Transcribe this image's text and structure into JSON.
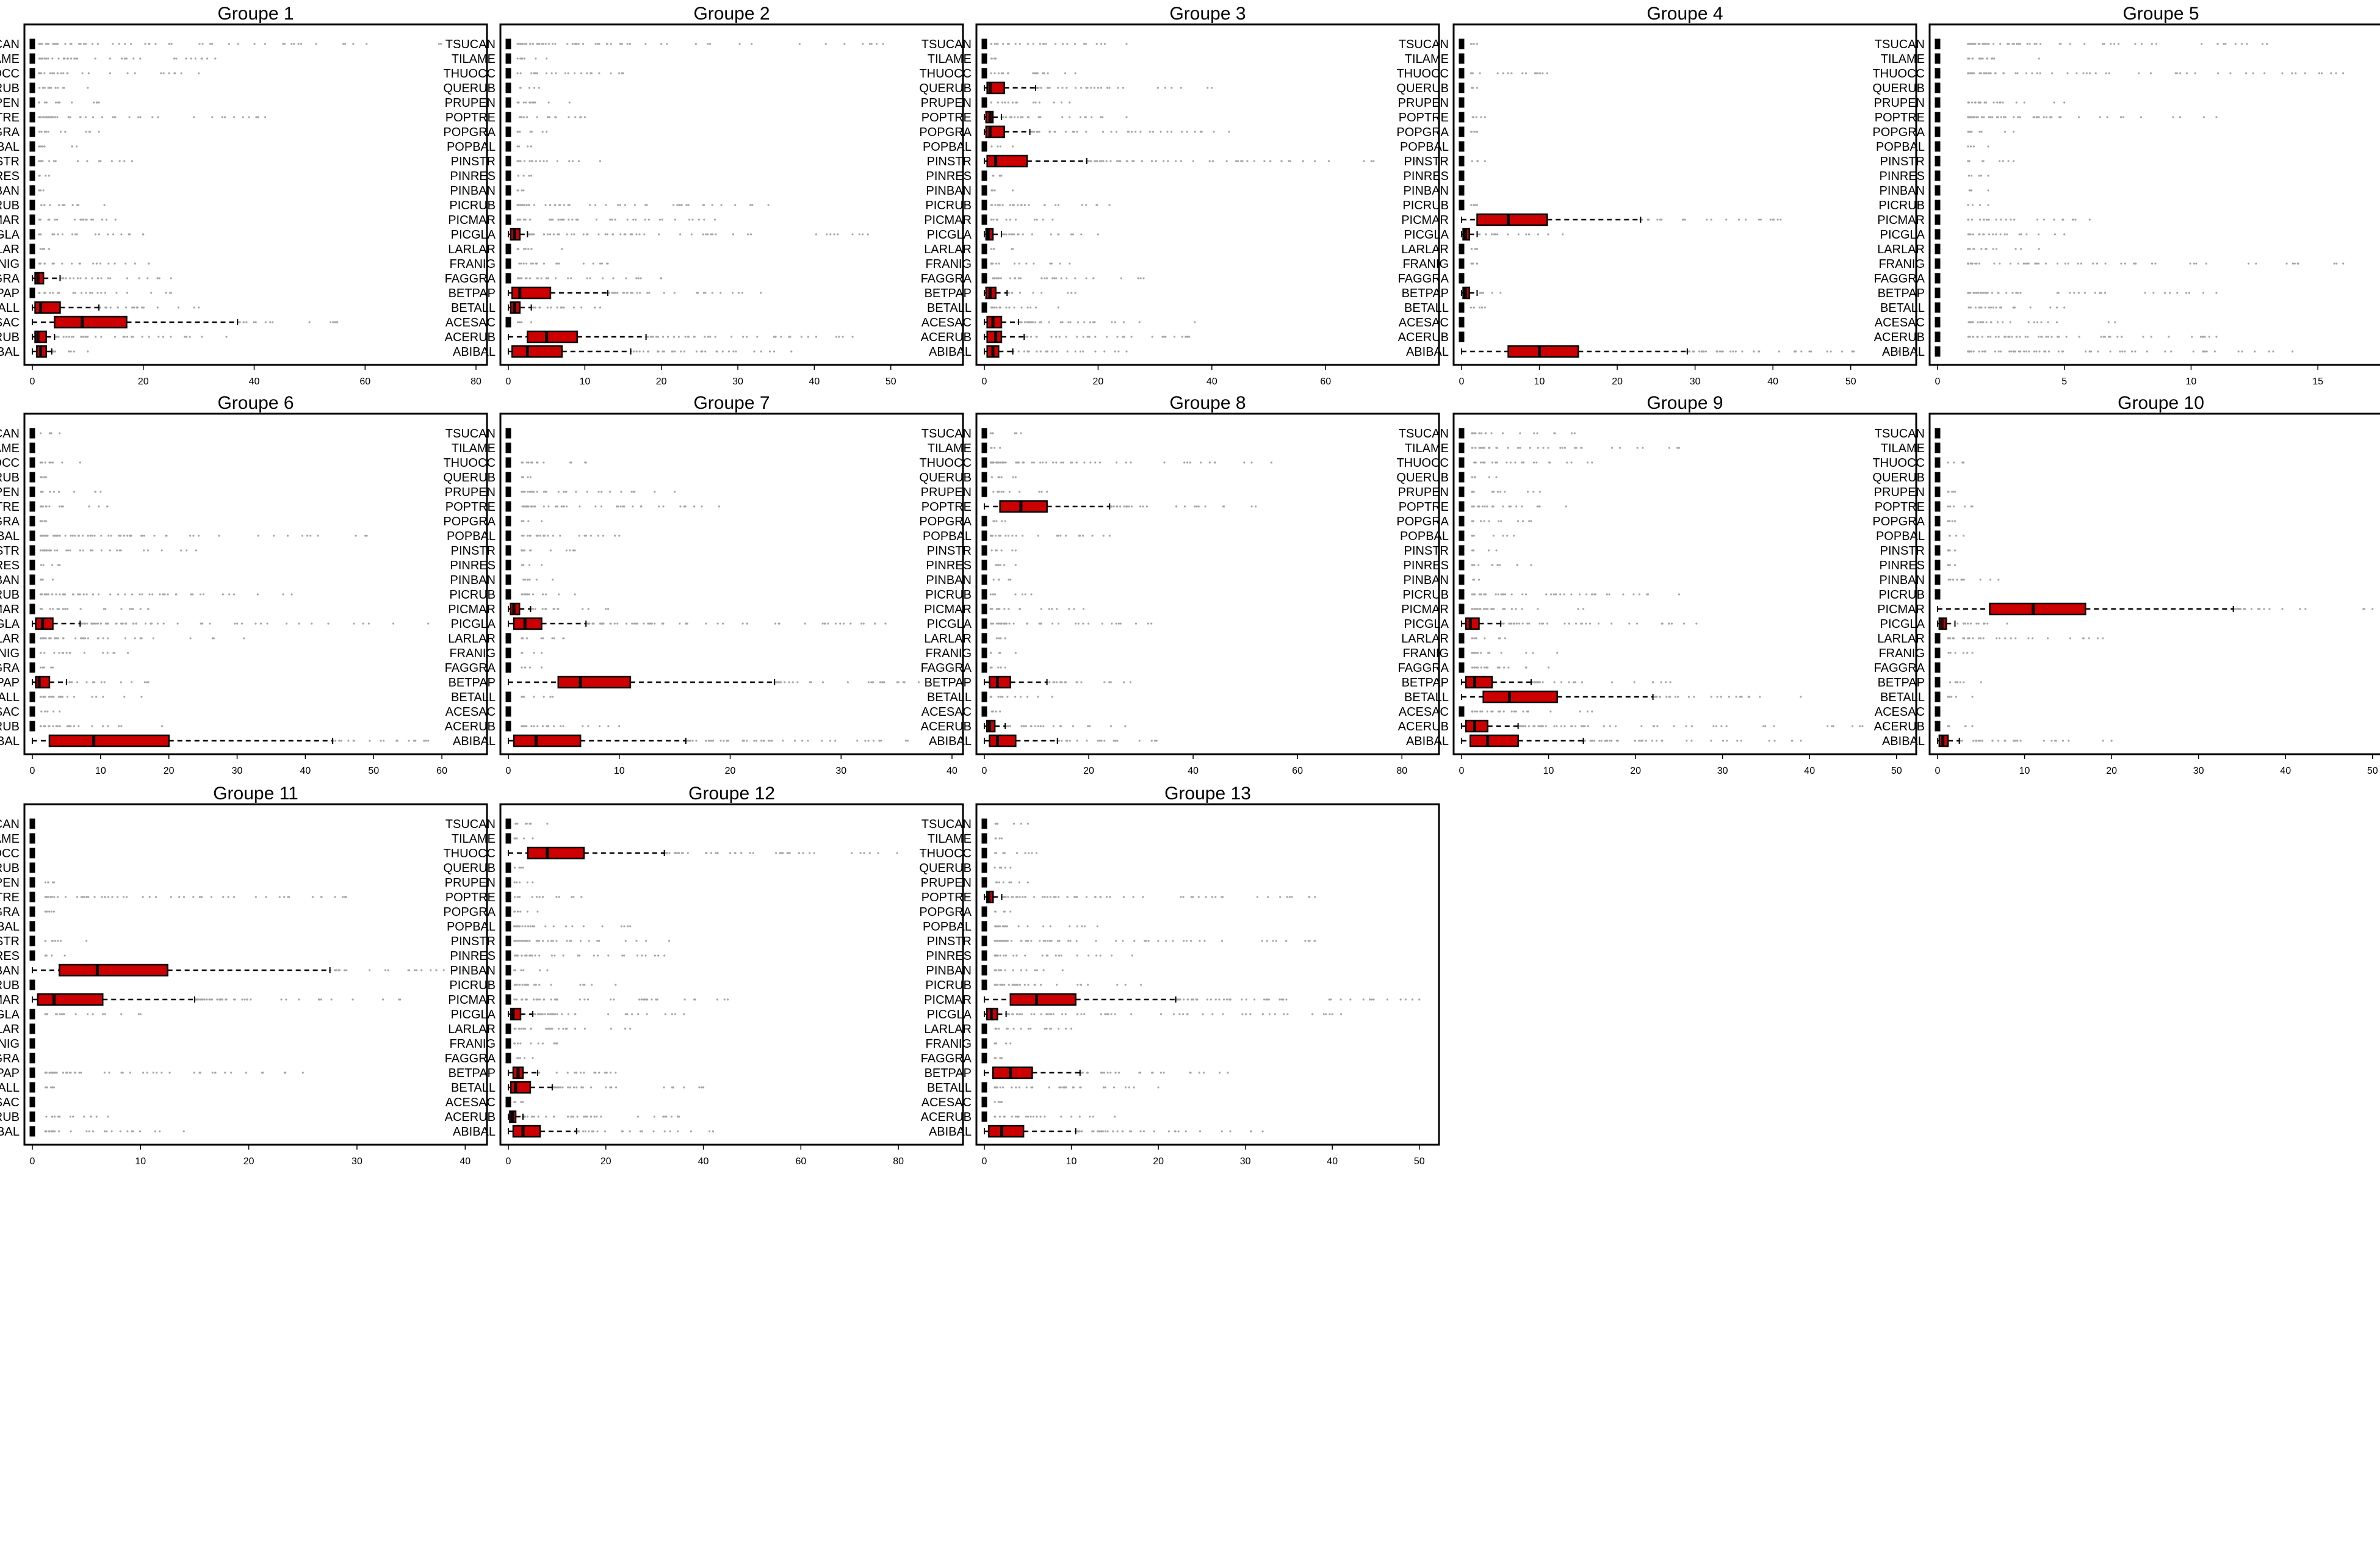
{
  "figure": {
    "species": [
      "ABIBAL",
      "ACERUB",
      "ACESAC",
      "BETALL",
      "BETPAP",
      "FAGGRA",
      "FRANIG",
      "LARLAR",
      "PICGLA",
      "PICMAR",
      "PICRUB",
      "PINBAN",
      "PINRES",
      "PINSTR",
      "POPBAL",
      "POPGRA",
      "POPTRE",
      "PRUPEN",
      "QUERUB",
      "THUOCC",
      "TILAME",
      "TSUCAN"
    ],
    "colors": {
      "box_fill": "#cc0000",
      "small_box_fill": "#000000",
      "outliers": "#a6a6a6",
      "frame": "#000000"
    }
  },
  "chart_data": [
    {
      "type": "boxplot",
      "title": "Groupe 1",
      "xlim": [
        0,
        80
      ],
      "ticks": [
        0,
        20,
        40,
        60,
        80
      ],
      "boxes": {
        "ABIBAL": [
          0,
          0.8,
          1.5,
          2.5,
          3.5
        ],
        "ACERUB": [
          0,
          0.5,
          1,
          2.5,
          4
        ],
        "ACESAC": [
          0,
          4,
          9,
          17,
          37
        ],
        "BETALL": [
          0,
          0.5,
          1.5,
          5,
          12
        ],
        "FAGGRA": [
          0,
          0.5,
          1,
          2,
          5
        ]
      },
      "max_outliers": {
        "TSUCAN": 77,
        "TILAME": 33,
        "THUOCC": 30,
        "QUERUB": 10,
        "PRUPEN": 12,
        "POPTRE": 42,
        "POPGRA": 12,
        "POPBAL": 8,
        "PINSTR": 18,
        "PINRES": 3,
        "PINBAN": 2,
        "PICRUB": 13,
        "PICMAR": 15,
        "PICGLA": 20,
        "LARLAR": 3,
        "FRANIG": 21,
        "FAGGRA": 25,
        "BETPAP": 25,
        "BETALL": 30,
        "ACESAC": 55,
        "ACERUB": 35,
        "ABIBAL": 10
      }
    },
    {
      "type": "boxplot",
      "title": "Groupe 2",
      "xlim": [
        0,
        58
      ],
      "ticks": [
        0,
        10,
        20,
        30,
        40,
        50
      ],
      "boxes": {
        "ABIBAL": [
          0,
          0.5,
          2.5,
          7,
          16
        ],
        "ACERUB": [
          0,
          2.5,
          5,
          9,
          18
        ],
        "BETALL": [
          0,
          0.3,
          0.8,
          1.5,
          3
        ],
        "BETPAP": [
          0,
          0.5,
          1.5,
          5.5,
          13
        ],
        "PICGLA": [
          0,
          0.3,
          0.8,
          1.5,
          2.5
        ]
      },
      "max_outliers": {
        "TSUCAN": 49,
        "TILAME": 5,
        "THUOCC": 15,
        "QUERUB": 4,
        "PRUPEN": 8,
        "POPTRE": 10,
        "POPGRA": 5,
        "POPBAL": 3,
        "PINSTR": 12,
        "PINRES": 3,
        "PINBAN": 2,
        "PICRUB": 34,
        "PICMAR": 27,
        "PICGLA": 47,
        "LARLAR": 7,
        "FRANIG": 13,
        "FAGGRA": 20,
        "BETPAP": 33,
        "BETALL": 12,
        "ACESAC": 3,
        "ACERUB": 45,
        "ABIBAL": 37
      }
    },
    {
      "type": "boxplot",
      "title": "Groupe 3",
      "xlim": [
        0,
        78
      ],
      "ticks": [
        0,
        20,
        40,
        60
      ],
      "boxes": {
        "ABIBAL": [
          0,
          0.5,
          1.5,
          2.5,
          5
        ],
        "ACERUB": [
          0,
          0.5,
          2,
          3,
          7
        ],
        "ACESAC": [
          0,
          0.5,
          1.5,
          3,
          6
        ],
        "BETPAP": [
          0,
          0.3,
          1,
          2,
          4
        ],
        "PICGLA": [
          0,
          0.3,
          0.7,
          1.5,
          3
        ],
        "PINSTR": [
          0,
          0.5,
          2,
          7.5,
          18
        ],
        "POPGRA": [
          0,
          0.3,
          1,
          3.5,
          8
        ],
        "POPTRE": [
          0,
          0.3,
          1,
          1.5,
          3
        ],
        "QUERUB": [
          0,
          0.5,
          1,
          3.5,
          9
        ]
      },
      "max_outliers": {
        "TSUCAN": 25,
        "TILAME": 2,
        "THUOCC": 16,
        "QUERUB": 40,
        "PRUPEN": 15,
        "POPTRE": 25,
        "POPGRA": 43,
        "POPBAL": 5,
        "PINSTR": 76,
        "PINRES": 3,
        "PINBAN": 5,
        "PICRUB": 22,
        "PICMAR": 12,
        "PICGLA": 20,
        "LARLAR": 5,
        "FRANIG": 15,
        "FAGGRA": 28,
        "BETPAP": 16,
        "BETALL": 13,
        "ACESAC": 37,
        "ACERUB": 36,
        "ABIBAL": 25
      }
    },
    {
      "type": "boxplot",
      "title": "Groupe 4",
      "xlim": [
        0,
        57
      ],
      "ticks": [
        0,
        10,
        20,
        30,
        40,
        50
      ],
      "boxes": {
        "ABIBAL": [
          0,
          6,
          10,
          15,
          29
        ],
        "BETPAP": [
          0,
          0.2,
          0.5,
          1,
          2
        ],
        "PICGLA": [
          0,
          0.2,
          0.5,
          1,
          2
        ],
        "PICMAR": [
          0,
          2,
          6,
          11,
          23
        ]
      },
      "max_outliers": {
        "TSUCAN": 2,
        "TILAME": 1,
        "THUOCC": 11,
        "QUERUB": 2,
        "PRUPEN": 1,
        "POPTRE": 3,
        "POPGRA": 2,
        "POPBAL": 1,
        "PINSTR": 3,
        "PINRES": 1,
        "PINBAN": 1,
        "PICRUB": 2,
        "PICMAR": 41,
        "PICGLA": 13,
        "LARLAR": 2,
        "FRANIG": 2,
        "FAGGRA": 1,
        "BETPAP": 5,
        "BETALL": 3,
        "ACESAC": 1,
        "ACERUB": 1,
        "ABIBAL": 57
      }
    },
    {
      "type": "boxplot",
      "title": "Groupe 5",
      "xlim": [
        0,
        17.5
      ],
      "ticks": [
        0,
        5,
        10,
        15
      ],
      "boxes": {},
      "max_outliers": {
        "TSUCAN": 13,
        "TILAME": 4,
        "THUOCC": 16,
        "QUERUB": 1,
        "PRUPEN": 5,
        "POPTRE": 11,
        "POPGRA": 3,
        "POPBAL": 2,
        "PINSTR": 3,
        "PINRES": 2,
        "PINBAN": 2,
        "PICRUB": 2,
        "PICMAR": 6,
        "PICGLA": 5,
        "LARLAR": 4,
        "FRANIG": 16,
        "FAGGRA": 1,
        "BETPAP": 11,
        "BETALL": 5,
        "ACESAC": 7,
        "ACERUB": 11,
        "ABIBAL": 14
      }
    },
    {
      "type": "boxplot",
      "title": "Groupe 6",
      "xlim": [
        0,
        65
      ],
      "ticks": [
        0,
        10,
        20,
        30,
        40,
        50,
        60
      ],
      "boxes": {
        "ABIBAL": [
          0,
          2.5,
          9,
          20,
          44
        ],
        "BETPAP": [
          0,
          0.5,
          1,
          2.5,
          5
        ],
        "PICGLA": [
          0,
          0.5,
          1.5,
          3,
          7
        ]
      },
      "max_outliers": {
        "TSUCAN": 4,
        "TILAME": 1,
        "THUOCC": 7,
        "QUERUB": 2,
        "PRUPEN": 10,
        "POPTRE": 11,
        "POPGRA": 2,
        "POPBAL": 49,
        "PINSTR": 24,
        "PINRES": 4,
        "PINBAN": 3,
        "PICRUB": 38,
        "PICMAR": 17,
        "PICGLA": 58,
        "LARLAR": 31,
        "FRANIG": 14,
        "FAGGRA": 3,
        "BETPAP": 17,
        "BETALL": 16,
        "ACESAC": 4,
        "ACERUB": 19,
        "ABIBAL": 58
      }
    },
    {
      "type": "boxplot",
      "title": "Groupe 7",
      "xlim": [
        0,
        40
      ],
      "ticks": [
        0,
        10,
        20,
        30,
        40
      ],
      "boxes": {
        "ABIBAL": [
          0,
          0.5,
          2.5,
          6.5,
          16
        ],
        "BETPAP": [
          0,
          4.5,
          6.5,
          11,
          24
        ],
        "PICGLA": [
          0,
          0.5,
          1.5,
          3,
          7
        ],
        "PICMAR": [
          0,
          0.2,
          0.5,
          1,
          2
        ]
      },
      "max_outliers": {
        "TSUCAN": 1,
        "TILAME": 1,
        "THUOCC": 7,
        "QUERUB": 2,
        "PRUPEN": 15,
        "POPTRE": 19,
        "POPGRA": 3,
        "POPBAL": 10,
        "PINSTR": 6,
        "PINRES": 3,
        "PINBAN": 4,
        "PICRUB": 6,
        "PICMAR": 9,
        "PICGLA": 34,
        "LARLAR": 5,
        "FRANIG": 3,
        "FAGGRA": 3,
        "BETPAP": 37,
        "BETALL": 4,
        "ACESAC": 1,
        "ACERUB": 10,
        "ABIBAL": 36
      }
    },
    {
      "type": "boxplot",
      "title": "Groupe 8",
      "xlim": [
        0,
        85
      ],
      "ticks": [
        0,
        20,
        40,
        60,
        80
      ],
      "boxes": {
        "ABIBAL": [
          0,
          1,
          2.5,
          6,
          14
        ],
        "ACERUB": [
          0,
          0.5,
          1,
          2,
          4
        ],
        "BETPAP": [
          0,
          1,
          2.5,
          5,
          12
        ],
        "POPTRE": [
          0,
          3,
          7,
          12,
          24
        ]
      },
      "max_outliers": {
        "TSUCAN": 7,
        "TILAME": 3,
        "THUOCC": 55,
        "QUERUB": 6,
        "PRUPEN": 12,
        "POPTRE": 52,
        "POPGRA": 4,
        "POPBAL": 24,
        "PINSTR": 6,
        "PINRES": 6,
        "PINBAN": 5,
        "PICRUB": 9,
        "PICMAR": 19,
        "PICGLA": 32,
        "LARLAR": 4,
        "FRANIG": 6,
        "FAGGRA": 4,
        "BETPAP": 28,
        "BETALL": 13,
        "ACESAC": 3,
        "ACERUB": 27,
        "ABIBAL": 33
      }
    },
    {
      "type": "boxplot",
      "title": "Groupe 9",
      "xlim": [
        0,
        51
      ],
      "ticks": [
        0,
        10,
        20,
        30,
        40,
        50
      ],
      "boxes": {
        "ABIBAL": [
          0,
          1,
          3,
          6.5,
          14
        ],
        "ACERUB": [
          0,
          0.5,
          1.5,
          3,
          6.5
        ],
        "BETALL": [
          0,
          2.5,
          5.5,
          11,
          22
        ],
        "BETPAP": [
          0,
          0.5,
          1.5,
          3.5,
          8
        ],
        "PICGLA": [
          0,
          0.5,
          1,
          2,
          4.5
        ]
      },
      "max_outliers": {
        "TSUCAN": 13,
        "TILAME": 25,
        "THUOCC": 15,
        "QUERUB": 4,
        "PRUPEN": 9,
        "POPTRE": 12,
        "POPGRA": 8,
        "POPBAL": 6,
        "PINSTR": 4,
        "PINRES": 8,
        "PINBAN": 2,
        "PICRUB": 25,
        "PICMAR": 14,
        "PICGLA": 27,
        "LARLAR": 5,
        "FRANIG": 11,
        "FAGGRA": 10,
        "BETPAP": 24,
        "BETALL": 39,
        "ACESAC": 15,
        "ACERUB": 50,
        "ABIBAL": 39
      }
    },
    {
      "type": "boxplot",
      "title": "Groupe 10",
      "xlim": [
        0,
        51
      ],
      "ticks": [
        0,
        10,
        20,
        30,
        40,
        50
      ],
      "boxes": {
        "ABIBAL": [
          0,
          0.2,
          0.6,
          1.2,
          2.5
        ],
        "PICGLA": [
          0,
          0.2,
          0.5,
          1,
          2
        ],
        "PICMAR": [
          0,
          6,
          11,
          17,
          34
        ]
      },
      "max_outliers": {
        "TSUCAN": 1,
        "TILAME": 1,
        "THUOCC": 3,
        "QUERUB": 1,
        "PRUPEN": 2,
        "POPTRE": 4,
        "POPGRA": 2,
        "POPBAL": 3,
        "PINSTR": 2,
        "PINRES": 2,
        "PINBAN": 7,
        "PICRUB": 1,
        "PICMAR": 50,
        "PICGLA": 8,
        "LARLAR": 19,
        "FRANIG": 4,
        "FAGGRA": 1,
        "BETPAP": 5,
        "BETALL": 4,
        "ACESAC": 1,
        "ACERUB": 4,
        "ABIBAL": 20
      }
    },
    {
      "type": "boxplot",
      "title": "Groupe 11",
      "xlim": [
        0,
        41
      ],
      "ticks": [
        0,
        10,
        20,
        30,
        40
      ],
      "boxes": {
        "PICMAR": [
          0,
          0.5,
          2,
          6.5,
          15
        ],
        "PINBAN": [
          0,
          2.5,
          6,
          12.5,
          27.5
        ]
      },
      "max_outliers": {
        "TSUCAN": 1,
        "TILAME": 1,
        "THUOCC": 1,
        "QUERUB": 1,
        "PRUPEN": 2,
        "POPTRE": 29,
        "POPGRA": 2,
        "POPBAL": 1,
        "PINSTR": 5,
        "PINRES": 3,
        "PINBAN": 40,
        "PICRUB": 1,
        "PICMAR": 34,
        "PICGLA": 10,
        "LARLAR": 1,
        "FRANIG": 1,
        "FAGGRA": 1,
        "BETPAP": 25,
        "BETALL": 2,
        "ACESAC": 1,
        "ACERUB": 7,
        "ABIBAL": 14
      }
    },
    {
      "type": "boxplot",
      "title": "Groupe 12",
      "xlim": [
        0,
        91
      ],
      "ticks": [
        0,
        20,
        40,
        60,
        80
      ],
      "boxes": {
        "ABIBAL": [
          0,
          1,
          3,
          6.5,
          14
        ],
        "ACERUB": [
          0,
          0.3,
          0.8,
          1.5,
          3
        ],
        "BETALL": [
          0,
          0.5,
          1.5,
          4.5,
          9
        ],
        "BETPAP": [
          0,
          1,
          2,
          3,
          6
        ],
        "PICGLA": [
          0,
          0.5,
          1,
          2.5,
          5
        ],
        "THUOCC": [
          0,
          4,
          8,
          15.5,
          32
        ]
      },
      "max_outliers": {
        "TSUCAN": 8,
        "TILAME": 5,
        "THUOCC": 88,
        "QUERUB": 3,
        "PRUPEN": 5,
        "POPTRE": 15,
        "POPGRA": 6,
        "POPBAL": 25,
        "PINSTR": 33,
        "PINRES": 32,
        "PINBAN": 8,
        "PICRUB": 22,
        "PICMAR": 45,
        "PICGLA": 36,
        "LARLAR": 25,
        "FRANIG": 10,
        "FAGGRA": 5,
        "BETPAP": 22,
        "BETALL": 40,
        "ACESAC": 3,
        "ACERUB": 35,
        "ABIBAL": 42
      }
    },
    {
      "type": "boxplot",
      "title": "Groupe 13",
      "xlim": [
        0,
        51
      ],
      "ticks": [
        0,
        10,
        20,
        30,
        40,
        50
      ],
      "boxes": {
        "ABIBAL": [
          0,
          0.5,
          2,
          4.5,
          10.5
        ],
        "BETPAP": [
          0,
          1,
          3,
          5.5,
          11
        ],
        "PICGLA": [
          0,
          0.3,
          0.8,
          1.5,
          2.5
        ],
        "PICMAR": [
          0,
          3,
          6,
          10.5,
          22
        ],
        "POPTRE": [
          0,
          0.3,
          0.5,
          1,
          2
        ]
      },
      "max_outliers": {
        "TSUCAN": 5,
        "TILAME": 2,
        "THUOCC": 6,
        "QUERUB": 3,
        "PRUPEN": 5,
        "POPTRE": 38,
        "POPGRA": 3,
        "POPBAL": 13,
        "PINSTR": 38,
        "PINRES": 17,
        "PINBAN": 9,
        "PICRUB": 18,
        "PICMAR": 50,
        "PICGLA": 41,
        "LARLAR": 10,
        "FRANIG": 3,
        "FAGGRA": 2,
        "BETPAP": 28,
        "BETALL": 20,
        "ACESAC": 2,
        "ACERUB": 15,
        "ABIBAL": 32
      }
    }
  ]
}
